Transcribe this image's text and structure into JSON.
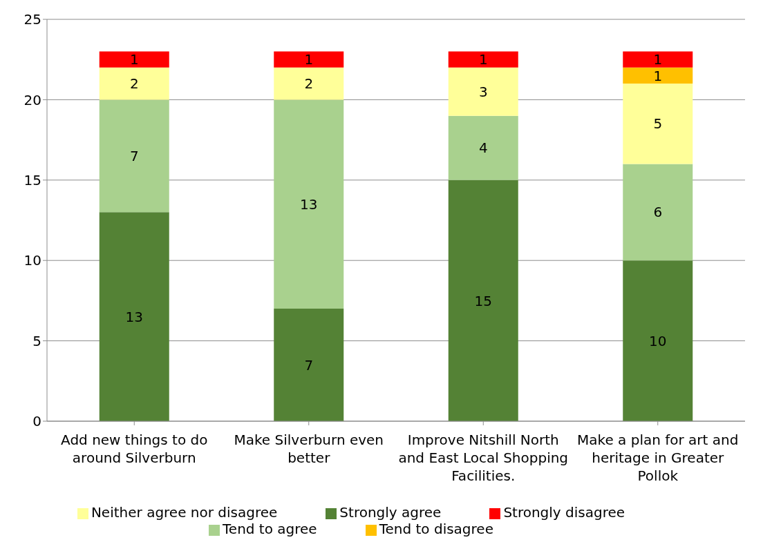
{
  "chart_data": {
    "type": "bar",
    "stacked": true,
    "categories": [
      "Add new things to do around Silverburn",
      "Make Silverburn even better",
      "Improve Nitshill North and East Local Shopping Facilities.",
      "Make a plan for art and heritage in Greater Pollok"
    ],
    "series": [
      {
        "name": "Strongly agree",
        "color": "#548235",
        "values": [
          13,
          7,
          15,
          10
        ]
      },
      {
        "name": "Tend to agree",
        "color": "#a9d18e",
        "values": [
          7,
          13,
          4,
          6
        ]
      },
      {
        "name": "Neither agree nor disagree",
        "color": "#ffff99",
        "values": [
          2,
          2,
          3,
          5
        ]
      },
      {
        "name": "Tend to disagree",
        "color": "#ffc000",
        "values": [
          null,
          null,
          null,
          1
        ]
      },
      {
        "name": "Strongly disagree",
        "color": "#ff0000",
        "values": [
          1,
          1,
          1,
          1
        ]
      }
    ],
    "ylim": [
      0,
      25
    ],
    "yticks": [
      0,
      5,
      10,
      15,
      20,
      25
    ],
    "grid": "y",
    "legend": "bottom",
    "data_labels": true
  }
}
